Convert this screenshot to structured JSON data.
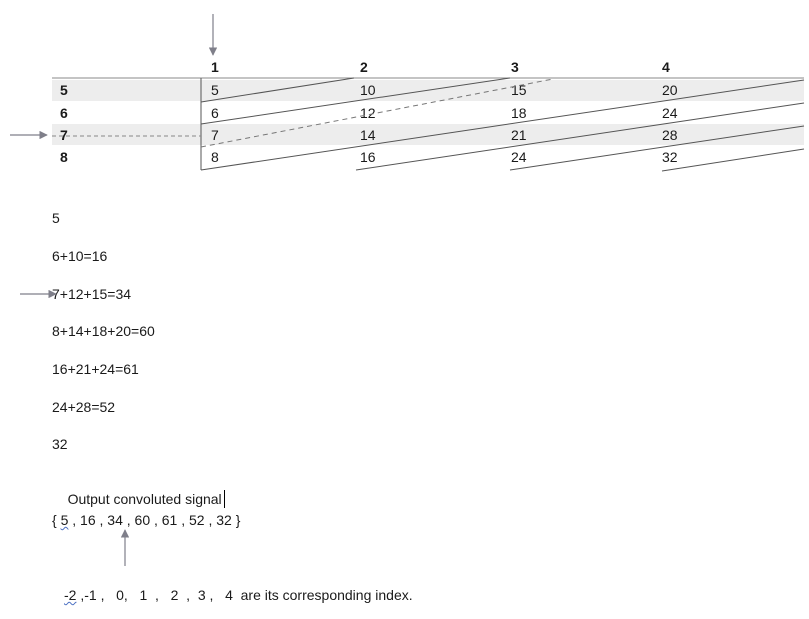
{
  "table": {
    "col_headers": [
      "1",
      "2",
      "3",
      "4"
    ],
    "row_headers": [
      "5",
      "6",
      "7",
      "8"
    ],
    "cells": [
      [
        "5",
        "10",
        "15",
        "20"
      ],
      [
        "6",
        "12",
        "18",
        "24"
      ],
      [
        "7",
        "14",
        "21",
        "28"
      ],
      [
        "8",
        "16",
        "24",
        "32"
      ]
    ]
  },
  "sums": [
    "5",
    "6+10=16",
    "7+12+15=34",
    "8+14+18+20=60",
    "16+21+24=61",
    "24+28=52",
    "32"
  ],
  "output_label": "Output convoluted signal",
  "output": {
    "open": "{ ",
    "first_value": "5",
    "rest": " , 16 , 34 , 60 , 61 , 52 , 32 }"
  },
  "index_line": {
    "first": "-2",
    "rest": " ,-1 ,   0,   1  ,   2  ,  3 ,   4  are its corresponding index."
  },
  "colors": {
    "arrow": "#7f7f8a",
    "row_shading": "#ededed",
    "grid_line": "#555555",
    "spell_check_underline": "#4a6fc2"
  }
}
